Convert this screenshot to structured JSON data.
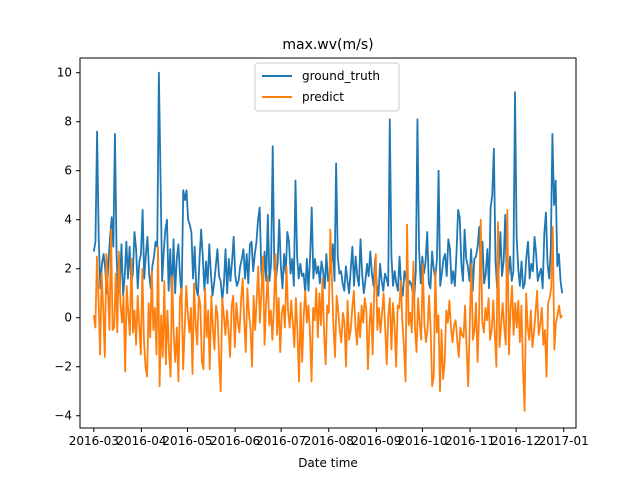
{
  "chart_data": {
    "type": "line",
    "title": "max.wv(m/s)",
    "xlabel": "Date time",
    "ylabel": "",
    "x_start": "2016-03-01",
    "x_end": "2016-12-31",
    "xlim": [
      "2016-02-21",
      "2017-01-09"
    ],
    "ylim": [
      -4.5,
      10.6
    ],
    "x_ticks": [
      "2016-03-01",
      "2016-04-01",
      "2016-05-01",
      "2016-06-01",
      "2016-07-01",
      "2016-08-01",
      "2016-09-01",
      "2016-10-01",
      "2016-11-01",
      "2016-12-01",
      "2017-01-01"
    ],
    "x_tick_labels": [
      "2016-03",
      "2016-04",
      "2016-05",
      "2016-06",
      "2016-07",
      "2016-08",
      "2016-09",
      "2016-10",
      "2016-11",
      "2016-12",
      "2017-01"
    ],
    "y_ticks": [
      -4,
      -2,
      0,
      2,
      4,
      6,
      8,
      10
    ],
    "grid": false,
    "legend_position": "upper center",
    "series": [
      {
        "name": "ground_truth",
        "color": "#1f77b4",
        "values": [
          2.7,
          3.1,
          7.6,
          3.3,
          1.2,
          2.2,
          2.6,
          2.0,
          1.0,
          2.3,
          3.3,
          4.1,
          2.9,
          7.5,
          2.5,
          1.0,
          1.2,
          3.0,
          0.9,
          1.7,
          3.1,
          1.6,
          2.9,
          1.4,
          1.8,
          3.5,
          2.8,
          1.2,
          2.3,
          2.6,
          4.4,
          1.6,
          2.6,
          3.3,
          1.8,
          1.2,
          2.1,
          2.5,
          3.1,
          2.9,
          10.0,
          5.8,
          1.5,
          2.7,
          3.6,
          4.0,
          1.1,
          2.8,
          0.8,
          3.2,
          1.0,
          2.4,
          3.0,
          1.7,
          0.9,
          5.2,
          4.8,
          5.2,
          4.0,
          3.8,
          3.5,
          1.6,
          2.9,
          1.2,
          0.9,
          2.4,
          3.6,
          2.5,
          1.1,
          2.3,
          1.4,
          3.0,
          1.8,
          0.9,
          1.4,
          2.1,
          2.8,
          1.7,
          1.5,
          0.7,
          1.4,
          2.8,
          1.0,
          2.4,
          1.5,
          2.3,
          3.3,
          1.7,
          1.3,
          1.5,
          2.1,
          2.4,
          2.8,
          1.6,
          2.6,
          1.4,
          3.0,
          3.1,
          1.9,
          2.6,
          3.1,
          4.0,
          4.5,
          1.9,
          1.3,
          2.7,
          1.5,
          4.2,
          1.5,
          2.2,
          7.0,
          2.0,
          1.6,
          2.2,
          4.0,
          2.1,
          1.2,
          2.6,
          1.8,
          3.5,
          3.1,
          1.8,
          2.4,
          1.3,
          5.6,
          2.5,
          1.6,
          2.2,
          1.7,
          1.8,
          1.0,
          2.4,
          1.1,
          2.5,
          4.5,
          1.6,
          2.4,
          1.8,
          2.1,
          1.4,
          2.3,
          1.9,
          1.2,
          2.6,
          1.5,
          1.8,
          2.1,
          3.0,
          1.5,
          6.3,
          2.5,
          1.8,
          1.9,
          1.4,
          1.1,
          2.1,
          1.5,
          1.0,
          2.0,
          2.9,
          1.3,
          2.5,
          1.7,
          1.3,
          3.2,
          1.8,
          1.0,
          1.5,
          2.2,
          1.7,
          2.7,
          1.8,
          1.3,
          2.4,
          1.3,
          0.9,
          2.2,
          1.5,
          1.1,
          1.8,
          1.6,
          1.3,
          8.1,
          2.5,
          1.3,
          1.9,
          1.4,
          1.1,
          2.5,
          1.3,
          0.9,
          1.9,
          1.6,
          1.2,
          1.5,
          1.4,
          1.1,
          0.8,
          1.9,
          8.1,
          2.8,
          1.4,
          2.5,
          1.8,
          2.3,
          3.5,
          1.4,
          1.2,
          2.7,
          2.0,
          1.6,
          2.4,
          6.0,
          1.3,
          1.8,
          2.4,
          2.6,
          1.7,
          3.2,
          2.8,
          1.4,
          1.9,
          1.3,
          2.6,
          4.4,
          4.1,
          2.2,
          1.5,
          3.6,
          2.4,
          2.1,
          1.5,
          2.8,
          1.1,
          2.4,
          2.5,
          2.9,
          3.7,
          1.6,
          3.1,
          1.4,
          1.8,
          2.8,
          1.2,
          4.5,
          5.0,
          6.9,
          2.3,
          1.2,
          2.0,
          3.5,
          1.7,
          2.3,
          4.2,
          1.4,
          1.8,
          2.5,
          1.5,
          1.9,
          9.2,
          3.3,
          2.0,
          1.3,
          2.3,
          1.2,
          1.4,
          2.5,
          3.1,
          1.6,
          2.2,
          1.9,
          3.3,
          2.6,
          1.5,
          1.8,
          2.0,
          1.2,
          3.4,
          4.3,
          2.2,
          1.6,
          2.8,
          7.5,
          4.6,
          5.6,
          2.1,
          2.6,
          1.5,
          1.0
        ]
      },
      {
        "name": "predict",
        "color": "#ff7f0e",
        "values": [
          0.1,
          -0.4,
          2.5,
          0.8,
          -1.5,
          1.8,
          0.4,
          -1.6,
          2.6,
          1.1,
          -0.5,
          3.6,
          -0.5,
          -0.4,
          1.8,
          -0.6,
          2.7,
          0.6,
          -0.2,
          0.9,
          -2.2,
          1.3,
          0.2,
          -0.7,
          2.4,
          -0.6,
          0.3,
          -1.1,
          0.9,
          -0.3,
          -1.5,
          2.0,
          -0.9,
          -2.0,
          -2.4,
          0.6,
          -0.8,
          1.9,
          -0.5,
          0.4,
          -1.5,
          2.9,
          -2.8,
          0.1,
          -1.6,
          1.5,
          -1.9,
          0.3,
          -1.4,
          -2.4,
          1.7,
          -0.7,
          -1.8,
          -0.4,
          -2.6,
          0.8,
          1.2,
          -2.1,
          -0.5,
          1.3,
          0.2,
          -0.6,
          0.4,
          -2.3,
          1.4,
          -0.3,
          -1.1,
          0.9,
          0.5,
          -1.8,
          -2.1,
          1.2,
          -0.8,
          0.3,
          -2.1,
          0.9,
          -0.4,
          -1.3,
          0.5,
          0.1,
          -1.7,
          -3.0,
          0.8,
          0.1,
          -0.7,
          0.3,
          -0.5,
          -1.6,
          0.5,
          0.9,
          -1.2,
          0.6,
          -0.2,
          -0.6,
          0.7,
          1.6,
          -0.1,
          -1.4,
          1.2,
          0.2,
          -0.4,
          -2.0,
          0.9,
          -0.5,
          0.8,
          2.1,
          -0.2,
          1.0,
          2.5,
          -1.1,
          0.6,
          1.7,
          -0.3,
          0.3,
          -0.9,
          0.5,
          2.6,
          -0.7,
          0.8,
          -1.4,
          0.2,
          0.5,
          -0.4,
          2.1,
          0.3,
          -0.4,
          0.7,
          -0.2,
          -1.2,
          0.8,
          -0.6,
          -2.6,
          0.6,
          -1.8,
          0.1,
          1.1,
          -0.2,
          0.5,
          -0.6,
          -2.6,
          0.4,
          -0.1,
          1.2,
          -0.8,
          1.0,
          -0.3,
          1.6,
          -0.6,
          -1.9,
          0.5,
          0.2,
          3.6,
          1.5,
          -0.4,
          -1.6,
          0.9,
          0.3,
          -0.5,
          -1.0,
          0.2,
          -0.2,
          -2.0,
          0.7,
          -0.9,
          -0.5,
          0.4,
          1.1,
          -0.3,
          -1.1,
          0.2,
          -0.8,
          0.5,
          -0.2,
          0.8,
          0.3,
          -2.1,
          -0.3,
          0.6,
          -1.5,
          1.1,
          2.6,
          -0.5,
          0.4,
          -0.6,
          0.2,
          1.0,
          -0.4,
          -1.9,
          0.1,
          0.8,
          -1.3,
          0.6,
          -0.3,
          -2.0,
          0.5,
          0.4,
          1.5,
          -0.2,
          -1.2,
          -2.6,
          3.8,
          -0.3,
          0.2,
          -0.6,
          2.3,
          -0.4,
          -1.4,
          0.8,
          -0.2,
          -0.9,
          2.2,
          -0.2,
          -1.0,
          -0.5,
          0.9,
          -0.4,
          -2.8,
          -2.4,
          1.9,
          -0.6,
          0.1,
          -3.0,
          -0.5,
          -2.5,
          -1.8,
          0.3,
          -0.2,
          0.7,
          -0.4,
          -1.0,
          -0.3,
          -0.1,
          -0.9,
          -1.6,
          -0.4,
          -0.7,
          -0.8,
          0.5,
          -1.3,
          -2.8,
          -0.3,
          2.2,
          -0.9,
          -0.5,
          0.6,
          -1.8,
          0.2,
          4.0,
          -0.2,
          -0.6,
          0.4,
          -0.1,
          0.8,
          -0.9,
          -0.5,
          0.7,
          -0.7,
          -2.0,
          3.9,
          -1.2,
          -0.3,
          0.6,
          -0.4,
          -1.1,
          4.4,
          -1.5,
          0.3,
          1.3,
          -0.7,
          0.6,
          -0.4,
          0.7,
          -1.0,
          0.5,
          -2.1,
          -3.8,
          1.0,
          -0.4,
          -0.9,
          0.3,
          -1.2,
          -0.6,
          0.2,
          1.1,
          -0.7,
          -0.3,
          0.4,
          -1.1,
          -0.5,
          -2.4,
          0.6,
          0.8,
          1.2,
          3.7,
          -1.3,
          -0.2,
          0.1,
          0.5,
          0.0,
          0.1
        ]
      }
    ]
  }
}
